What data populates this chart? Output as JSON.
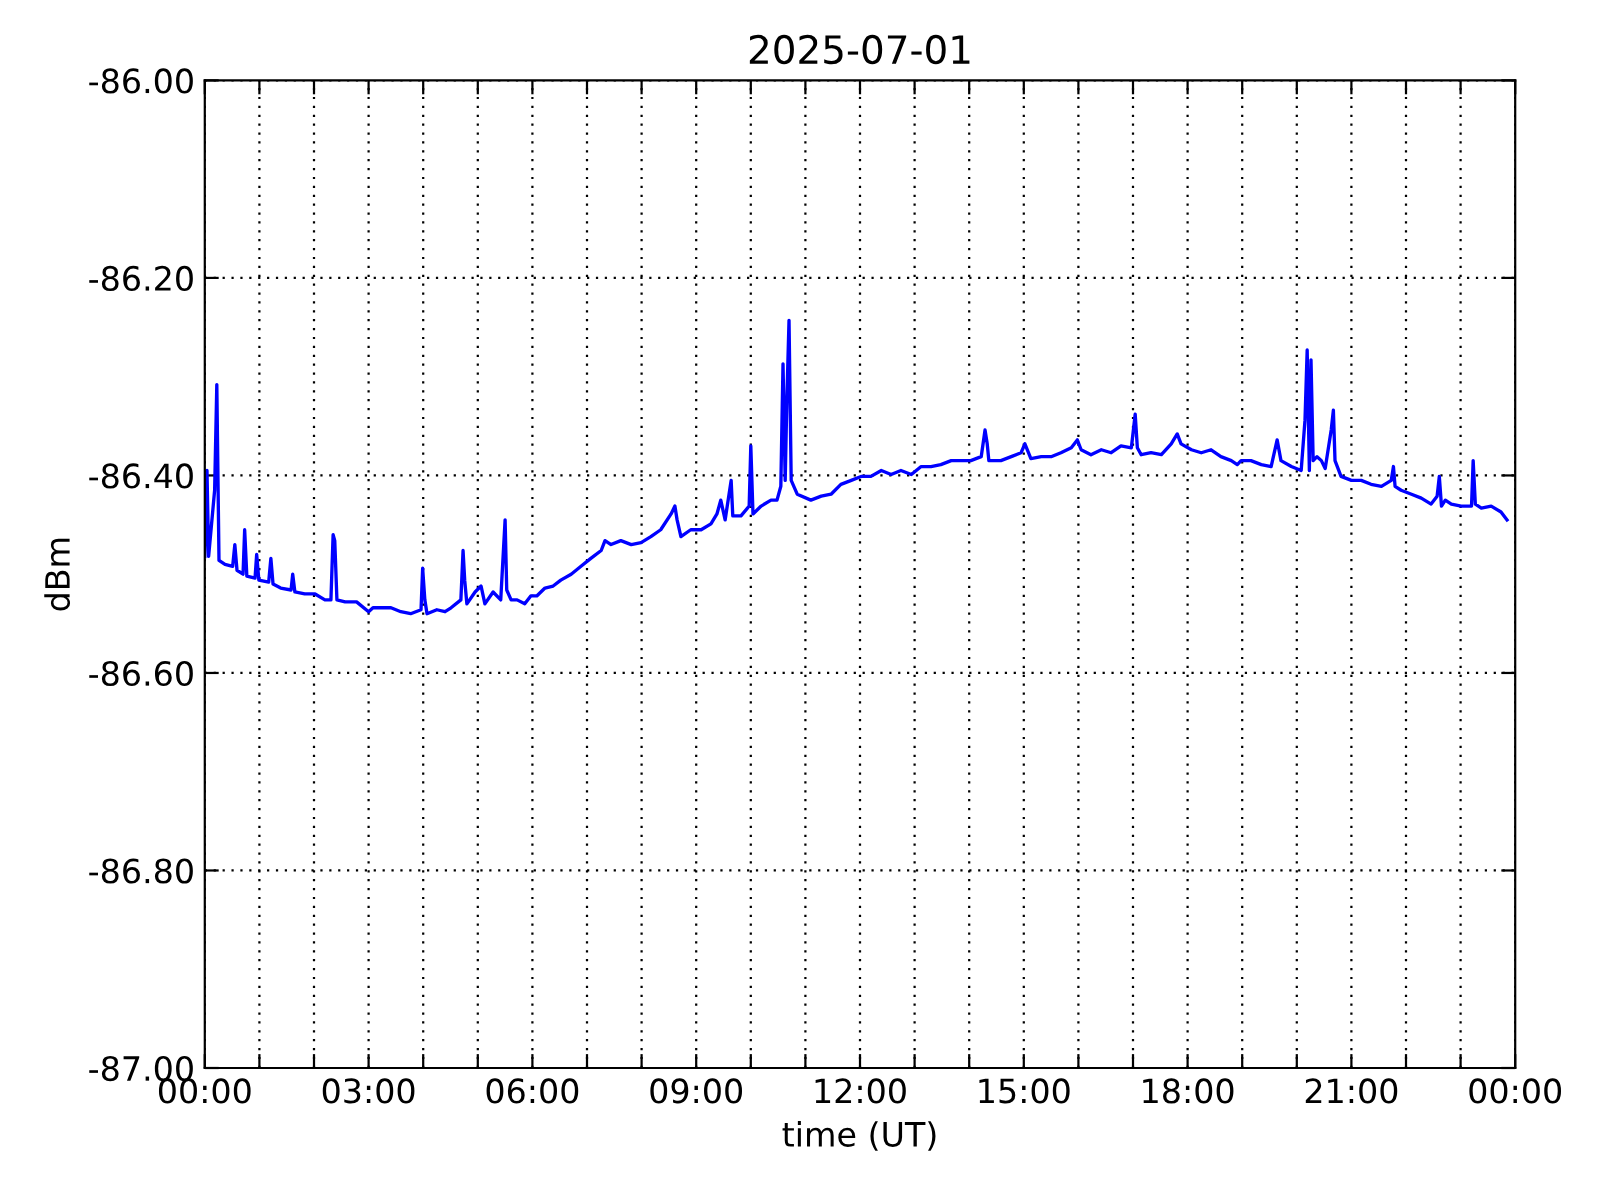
{
  "chart_data": {
    "type": "line",
    "title": "2025-07-01",
    "xlabel": "time (UT)",
    "ylabel": "dBm",
    "xlim": [
      0,
      24
    ],
    "ylim": [
      -87,
      -86
    ],
    "grid": true,
    "line_style": "solid",
    "marker": "none",
    "xticks": [
      {
        "value": 0,
        "label": "00:00"
      },
      {
        "value": 1,
        "label": null
      },
      {
        "value": 2,
        "label": null
      },
      {
        "value": 3,
        "label": "03:00"
      },
      {
        "value": 4,
        "label": null
      },
      {
        "value": 5,
        "label": null
      },
      {
        "value": 6,
        "label": "06:00"
      },
      {
        "value": 7,
        "label": null
      },
      {
        "value": 8,
        "label": null
      },
      {
        "value": 9,
        "label": "09:00"
      },
      {
        "value": 10,
        "label": null
      },
      {
        "value": 11,
        "label": null
      },
      {
        "value": 12,
        "label": "12:00"
      },
      {
        "value": 13,
        "label": null
      },
      {
        "value": 14,
        "label": null
      },
      {
        "value": 15,
        "label": "15:00"
      },
      {
        "value": 16,
        "label": null
      },
      {
        "value": 17,
        "label": null
      },
      {
        "value": 18,
        "label": "18:00"
      },
      {
        "value": 19,
        "label": null
      },
      {
        "value": 20,
        "label": null
      },
      {
        "value": 21,
        "label": "21:00"
      },
      {
        "value": 22,
        "label": null
      },
      {
        "value": 23,
        "label": null
      },
      {
        "value": 24,
        "label": "00:00"
      }
    ],
    "yticks": [
      {
        "value": -87,
        "label": "-87.00"
      },
      {
        "value": -86.8,
        "label": "-86.80"
      },
      {
        "value": -86.6,
        "label": "-86.60"
      },
      {
        "value": -86.4,
        "label": "-86.40"
      },
      {
        "value": -86.2,
        "label": "-86.20"
      },
      {
        "value": -86,
        "label": "-86.00"
      }
    ],
    "series": [
      {
        "color": "#0000ff",
        "x": [
          0,
          0.04,
          0.07,
          0.18,
          0.22,
          0.26,
          0.37,
          0.51,
          0.55,
          0.59,
          0.7,
          0.73,
          0.77,
          0.92,
          0.95,
          0.99,
          1.17,
          1.21,
          1.25,
          1.39,
          1.58,
          1.61,
          1.65,
          1.83,
          2.02,
          2.2,
          2.31,
          2.35,
          2.38,
          2.42,
          2.57,
          2.78,
          3,
          3.08,
          3.22,
          3.41,
          3.59,
          3.77,
          3.96,
          3.99,
          4.03,
          4.07,
          4.25,
          4.4,
          4.51,
          4.69,
          4.73,
          4.76,
          4.8,
          4.95,
          5.06,
          5.13,
          5.28,
          5.42,
          5.5,
          5.53,
          5.61,
          5.72,
          5.86,
          5.97,
          6.08,
          6.23,
          6.38,
          6.52,
          6.71,
          6.89,
          7.07,
          7.26,
          7.33,
          7.44,
          7.62,
          7.81,
          7.99,
          8.17,
          8.35,
          8.54,
          8.61,
          8.65,
          8.72,
          8.9,
          9.09,
          9.27,
          9.38,
          9.45,
          9.53,
          9.64,
          9.67,
          9.82,
          9.97,
          10,
          10.04,
          10.19,
          10.37,
          10.48,
          10.55,
          10.59,
          10.63,
          10.66,
          10.7,
          10.74,
          10.85,
          11.1,
          11.29,
          11.47,
          11.65,
          11.84,
          12.02,
          12.2,
          12.39,
          12.57,
          12.75,
          12.94,
          13.12,
          13.3,
          13.48,
          13.67,
          13.85,
          14.03,
          14.22,
          14.29,
          14.33,
          14.36,
          14.58,
          14.77,
          14.95,
          15.02,
          15.13,
          15.32,
          15.5,
          15.68,
          15.87,
          15.98,
          16.05,
          16.23,
          16.42,
          16.6,
          16.78,
          16.97,
          17.04,
          17.08,
          17.15,
          17.33,
          17.52,
          17.7,
          17.81,
          17.88,
          18.07,
          18.25,
          18.43,
          18.61,
          18.8,
          18.91,
          18.98,
          19.16,
          19.35,
          19.53,
          19.64,
          19.71,
          19.9,
          20.08,
          20.15,
          20.19,
          20.23,
          20.26,
          20.3,
          20.37,
          20.45,
          20.52,
          20.63,
          20.67,
          20.7,
          20.81,
          21,
          21.18,
          21.36,
          21.55,
          21.73,
          21.77,
          21.8,
          21.91,
          22.1,
          22.28,
          22.46,
          22.57,
          22.61,
          22.65,
          22.72,
          22.83,
          23.01,
          23.2,
          23.23,
          23.27,
          23.38,
          23.56,
          23.74,
          23.85
        ],
        "values": [
          -86.482,
          -86.395,
          -86.482,
          -86.415,
          -86.308,
          -86.486,
          -86.49,
          -86.492,
          -86.47,
          -86.496,
          -86.5,
          -86.455,
          -86.502,
          -86.504,
          -86.48,
          -86.506,
          -86.508,
          -86.484,
          -86.51,
          -86.514,
          -86.516,
          -86.5,
          -86.518,
          -86.52,
          -86.52,
          -86.526,
          -86.526,
          -86.46,
          -86.466,
          -86.526,
          -86.528,
          -86.528,
          -86.538,
          -86.534,
          -86.534,
          -86.534,
          -86.538,
          -86.54,
          -86.536,
          -86.494,
          -86.526,
          -86.54,
          -86.536,
          -86.538,
          -86.534,
          -86.526,
          -86.476,
          -86.506,
          -86.53,
          -86.518,
          -86.512,
          -86.53,
          -86.518,
          -86.526,
          -86.445,
          -86.516,
          -86.526,
          -86.526,
          -86.53,
          -86.522,
          -86.522,
          -86.514,
          -86.512,
          -86.506,
          -86.5,
          -86.492,
          -86.484,
          -86.476,
          -86.466,
          -86.47,
          -86.466,
          -86.47,
          -86.468,
          -86.462,
          -86.455,
          -86.439,
          -86.431,
          -86.445,
          -86.462,
          -86.455,
          -86.455,
          -86.449,
          -86.439,
          -86.425,
          -86.445,
          -86.405,
          -86.441,
          -86.441,
          -86.431,
          -86.37,
          -86.439,
          -86.431,
          -86.425,
          -86.425,
          -86.411,
          -86.287,
          -86.405,
          -86.324,
          -86.243,
          -86.405,
          -86.419,
          -86.425,
          -86.421,
          -86.419,
          -86.409,
          -86.405,
          -86.401,
          -86.401,
          -86.395,
          -86.399,
          -86.395,
          -86.399,
          -86.391,
          -86.391,
          -86.389,
          -86.385,
          -86.385,
          -86.385,
          -86.381,
          -86.354,
          -86.368,
          -86.385,
          -86.385,
          -86.381,
          -86.377,
          -86.368,
          -86.383,
          -86.381,
          -86.381,
          -86.377,
          -86.372,
          -86.364,
          -86.374,
          -86.379,
          -86.374,
          -86.377,
          -86.37,
          -86.372,
          -86.338,
          -86.372,
          -86.379,
          -86.377,
          -86.379,
          -86.368,
          -86.358,
          -86.368,
          -86.374,
          -86.377,
          -86.374,
          -86.381,
          -86.385,
          -86.389,
          -86.385,
          -86.385,
          -86.389,
          -86.391,
          -86.364,
          -86.385,
          -86.391,
          -86.395,
          -86.344,
          -86.273,
          -86.395,
          -86.283,
          -86.385,
          -86.381,
          -86.385,
          -86.393,
          -86.354,
          -86.334,
          -86.385,
          -86.401,
          -86.405,
          -86.405,
          -86.409,
          -86.411,
          -86.405,
          -86.391,
          -86.411,
          -86.415,
          -86.419,
          -86.423,
          -86.429,
          -86.421,
          -86.401,
          -86.431,
          -86.425,
          -86.429,
          -86.431,
          -86.431,
          -86.385,
          -86.429,
          -86.433,
          -86.431,
          -86.437,
          -86.445
        ]
      }
    ]
  }
}
